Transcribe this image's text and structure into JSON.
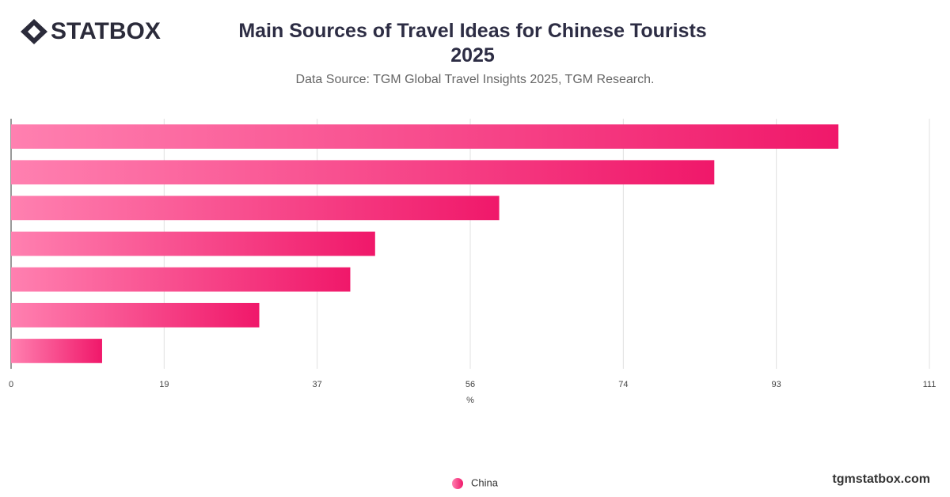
{
  "logo": "STATBOX",
  "watermark": "tgmstatbox.com",
  "chart_data": {
    "type": "bar",
    "orientation": "horizontal",
    "title": "Main Sources of Travel Ideas for Chinese Tourists 2025",
    "subtitle": "Data Source: TGM Global Travel Insights 2025, TGM Research.",
    "x_label": "%",
    "categories": [
      null,
      null,
      null,
      null,
      null,
      null,
      null
    ],
    "series": [
      {
        "name": "China",
        "color": "#f0186a",
        "values": [
          100,
          85,
          59,
          44,
          41,
          30,
          11
        ]
      }
    ],
    "xlim": [
      0,
      111
    ],
    "xticks": [
      0,
      {
        "value": 18.5,
        "label": "19"
      },
      37,
      {
        "value": 55.5,
        "label": "56"
      },
      74,
      {
        "value": 92.5,
        "label": "93"
      },
      111
    ],
    "grid": true,
    "legend": "bottom"
  }
}
